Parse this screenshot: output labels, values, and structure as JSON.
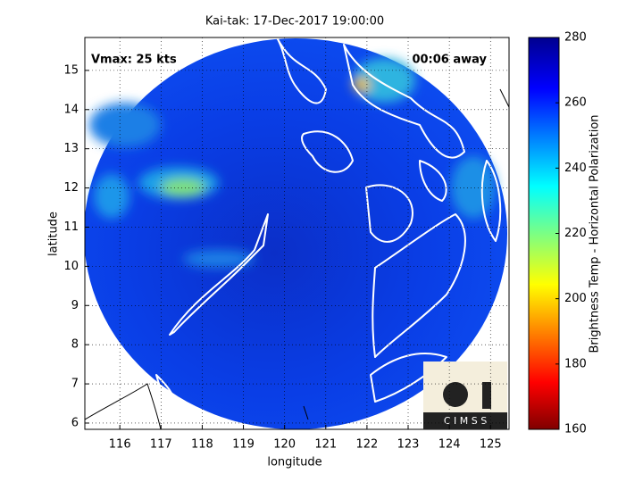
{
  "map": {
    "title": "Kai-tak: 17-Dec-2017 19:00:00",
    "xlabel": "longitude",
    "ylabel": "latitude",
    "xlim": [
      115.15,
      125.45
    ],
    "ylim": [
      5.84,
      15.84
    ],
    "xticks": [
      116,
      117,
      118,
      119,
      120,
      121,
      122,
      123,
      124,
      125
    ],
    "yticks": [
      6,
      7,
      8,
      9,
      10,
      11,
      12,
      13,
      14,
      15
    ],
    "grid": true,
    "annotations": {
      "left": "Vmax: 25 kts",
      "right": "00:06 away"
    },
    "logo": "C I M S S",
    "colorbar": {
      "label": "Brightness Temp - Horizontal Polarization",
      "lim": [
        160,
        280
      ],
      "ticks": [
        160,
        180,
        200,
        220,
        240,
        260,
        280
      ]
    }
  }
}
